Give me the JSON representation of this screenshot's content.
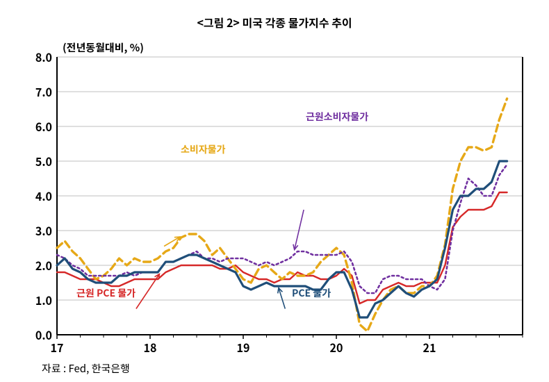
{
  "meta": {
    "title": "<그림 2> 미국 각종 물가지수 추이",
    "subtitle": "(전년동월대비, %)",
    "source": "자료 : Fed, 한국은행",
    "title_fontsize": 16,
    "subtitle_fontsize": 15,
    "background_color": "#ffffff"
  },
  "chart": {
    "type": "line",
    "xlim": [
      2017,
      2022
    ],
    "ylim": [
      0.0,
      8.0
    ],
    "ytick_step": 1.0,
    "yticks": [
      "0.0",
      "1.0",
      "2.0",
      "3.0",
      "4.0",
      "5.0",
      "6.0",
      "7.0",
      "8.0"
    ],
    "xticks": [
      "17",
      "18",
      "19",
      "20",
      "21"
    ],
    "xtick_positions": [
      2017,
      2018,
      2019,
      2020,
      2021
    ],
    "grid_color": "#bfbfbf",
    "axis_color": "#000000",
    "axis_width": 2,
    "grid_width": 1,
    "tick_len": 6
  },
  "series": {
    "core_pce": {
      "label": "근원 PCE 물가",
      "color": "#d62828",
      "width": 2.4,
      "dash": "none",
      "x": [
        2017.0,
        2017.083,
        2017.167,
        2017.25,
        2017.333,
        2017.417,
        2017.5,
        2017.583,
        2017.667,
        2017.75,
        2017.833,
        2017.917,
        2018.0,
        2018.083,
        2018.167,
        2018.25,
        2018.333,
        2018.417,
        2018.5,
        2018.583,
        2018.667,
        2018.75,
        2018.833,
        2018.917,
        2019.0,
        2019.083,
        2019.167,
        2019.25,
        2019.333,
        2019.417,
        2019.5,
        2019.583,
        2019.667,
        2019.75,
        2019.833,
        2019.917,
        2020.0,
        2020.083,
        2020.167,
        2020.25,
        2020.333,
        2020.417,
        2020.5,
        2020.583,
        2020.667,
        2020.75,
        2020.833,
        2020.917,
        2021.0,
        2021.083,
        2021.167,
        2021.25,
        2021.333,
        2021.417,
        2021.5,
        2021.583,
        2021.667,
        2021.75,
        2021.833
      ],
      "y": [
        1.8,
        1.8,
        1.7,
        1.6,
        1.6,
        1.6,
        1.5,
        1.4,
        1.4,
        1.5,
        1.6,
        1.6,
        1.6,
        1.6,
        1.8,
        1.9,
        2.0,
        2.0,
        2.0,
        2.0,
        2.0,
        1.9,
        1.9,
        2.0,
        1.8,
        1.7,
        1.6,
        1.6,
        1.5,
        1.6,
        1.6,
        1.8,
        1.7,
        1.7,
        1.6,
        1.6,
        1.7,
        1.9,
        1.7,
        0.9,
        1.0,
        1.0,
        1.3,
        1.4,
        1.5,
        1.4,
        1.4,
        1.5,
        1.5,
        1.5,
        2.0,
        3.1,
        3.4,
        3.6,
        3.6,
        3.6,
        3.7,
        4.1,
        4.1
      ]
    },
    "pce": {
      "label": "PCE 물가",
      "color": "#1f4e79",
      "width": 3.2,
      "dash": "none",
      "x": [
        2017.0,
        2017.083,
        2017.167,
        2017.25,
        2017.333,
        2017.417,
        2017.5,
        2017.583,
        2017.667,
        2017.75,
        2017.833,
        2017.917,
        2018.0,
        2018.083,
        2018.167,
        2018.25,
        2018.333,
        2018.417,
        2018.5,
        2018.583,
        2018.667,
        2018.75,
        2018.833,
        2018.917,
        2019.0,
        2019.083,
        2019.167,
        2019.25,
        2019.333,
        2019.417,
        2019.5,
        2019.583,
        2019.667,
        2019.75,
        2019.833,
        2019.917,
        2020.0,
        2020.083,
        2020.167,
        2020.25,
        2020.333,
        2020.417,
        2020.5,
        2020.583,
        2020.667,
        2020.75,
        2020.833,
        2020.917,
        2021.0,
        2021.083,
        2021.167,
        2021.25,
        2021.333,
        2021.417,
        2021.5,
        2021.583,
        2021.667,
        2021.75,
        2021.833
      ],
      "y": [
        2.0,
        2.2,
        1.9,
        1.8,
        1.6,
        1.5,
        1.5,
        1.5,
        1.7,
        1.7,
        1.8,
        1.8,
        1.8,
        1.8,
        2.1,
        2.1,
        2.2,
        2.3,
        2.3,
        2.2,
        2.1,
        2.0,
        1.9,
        1.8,
        1.4,
        1.3,
        1.4,
        1.5,
        1.4,
        1.4,
        1.4,
        1.4,
        1.4,
        1.3,
        1.3,
        1.6,
        1.8,
        1.8,
        1.3,
        0.5,
        0.5,
        0.9,
        1.0,
        1.2,
        1.4,
        1.2,
        1.1,
        1.3,
        1.4,
        1.6,
        2.5,
        3.6,
        4.0,
        4.0,
        4.2,
        4.2,
        4.4,
        5.0,
        5.0
      ]
    },
    "cpi": {
      "label": "소비자물가",
      "color": "#e6a817",
      "width": 3.4,
      "dash": "10,6",
      "x": [
        2017.0,
        2017.083,
        2017.167,
        2017.25,
        2017.333,
        2017.417,
        2017.5,
        2017.583,
        2017.667,
        2017.75,
        2017.833,
        2017.917,
        2018.0,
        2018.083,
        2018.167,
        2018.25,
        2018.333,
        2018.417,
        2018.5,
        2018.583,
        2018.667,
        2018.75,
        2018.833,
        2018.917,
        2019.0,
        2019.083,
        2019.167,
        2019.25,
        2019.333,
        2019.417,
        2019.5,
        2019.583,
        2019.667,
        2019.75,
        2019.833,
        2019.917,
        2020.0,
        2020.083,
        2020.167,
        2020.25,
        2020.333,
        2020.417,
        2020.5,
        2020.583,
        2020.667,
        2020.75,
        2020.833,
        2020.917,
        2021.0,
        2021.083,
        2021.167,
        2021.25,
        2021.333,
        2021.417,
        2021.5,
        2021.583,
        2021.667,
        2021.75,
        2021.833
      ],
      "y": [
        2.5,
        2.7,
        2.4,
        2.2,
        1.9,
        1.6,
        1.7,
        1.9,
        2.2,
        2.0,
        2.2,
        2.1,
        2.1,
        2.2,
        2.4,
        2.5,
        2.8,
        2.9,
        2.9,
        2.7,
        2.3,
        2.5,
        2.2,
        1.9,
        1.6,
        1.5,
        1.9,
        2.0,
        1.8,
        1.6,
        1.8,
        1.7,
        1.7,
        1.8,
        2.1,
        2.3,
        2.5,
        2.3,
        1.5,
        0.3,
        0.1,
        0.6,
        1.0,
        1.3,
        1.4,
        1.2,
        1.2,
        1.4,
        1.4,
        1.7,
        2.6,
        4.2,
        5.0,
        5.4,
        5.4,
        5.3,
        5.4,
        6.2,
        6.8
      ]
    },
    "core_cpi": {
      "label": "근원소비자물가",
      "color": "#7030a0",
      "width": 2.6,
      "dash": "3,4",
      "x": [
        2017.0,
        2017.083,
        2017.167,
        2017.25,
        2017.333,
        2017.417,
        2017.5,
        2017.583,
        2017.667,
        2017.75,
        2017.833,
        2017.917,
        2018.0,
        2018.083,
        2018.167,
        2018.25,
        2018.333,
        2018.417,
        2018.5,
        2018.583,
        2018.667,
        2018.75,
        2018.833,
        2018.917,
        2019.0,
        2019.083,
        2019.167,
        2019.25,
        2019.333,
        2019.417,
        2019.5,
        2019.583,
        2019.667,
        2019.75,
        2019.833,
        2019.917,
        2020.0,
        2020.083,
        2020.167,
        2020.25,
        2020.333,
        2020.417,
        2020.5,
        2020.583,
        2020.667,
        2020.75,
        2020.833,
        2020.917,
        2021.0,
        2021.083,
        2021.167,
        2021.25,
        2021.333,
        2021.417,
        2021.5,
        2021.583,
        2021.667,
        2021.75,
        2021.833
      ],
      "y": [
        2.3,
        2.2,
        2.0,
        1.9,
        1.7,
        1.7,
        1.7,
        1.7,
        1.7,
        1.8,
        1.7,
        1.8,
        1.8,
        1.8,
        2.1,
        2.1,
        2.2,
        2.3,
        2.4,
        2.2,
        2.2,
        2.1,
        2.2,
        2.2,
        2.2,
        2.1,
        2.0,
        2.1,
        2.0,
        2.1,
        2.2,
        2.4,
        2.4,
        2.3,
        2.3,
        2.3,
        2.3,
        2.4,
        2.1,
        1.4,
        1.2,
        1.2,
        1.6,
        1.7,
        1.7,
        1.6,
        1.6,
        1.6,
        1.4,
        1.3,
        1.6,
        3.0,
        3.8,
        4.5,
        4.3,
        4.0,
        4.0,
        4.6,
        4.9
      ]
    }
  },
  "annotations": {
    "cpi_label": {
      "text": "소비자물가",
      "color": "#e6a817",
      "arrow_from": [
        2018.15,
        2.55
      ],
      "arrow_to": [
        2018.32,
        2.82
      ]
    },
    "core_cpi_label": {
      "text": "근원소비자물가",
      "color": "#7030a0",
      "arrow_from": [
        2019.65,
        3.6
      ],
      "arrow_to": [
        2019.55,
        2.45
      ]
    },
    "core_pce_label": {
      "text": "근원 PCE 물가",
      "color": "#d62828",
      "arrow_from": [
        2017.85,
        0.75
      ],
      "arrow_to": [
        2018.1,
        1.75
      ]
    },
    "pce_label": {
      "text": "PCE 물가",
      "color": "#1f4e79",
      "arrow_from": [
        2019.45,
        0.75
      ],
      "arrow_to": [
        2019.38,
        1.35
      ]
    }
  }
}
